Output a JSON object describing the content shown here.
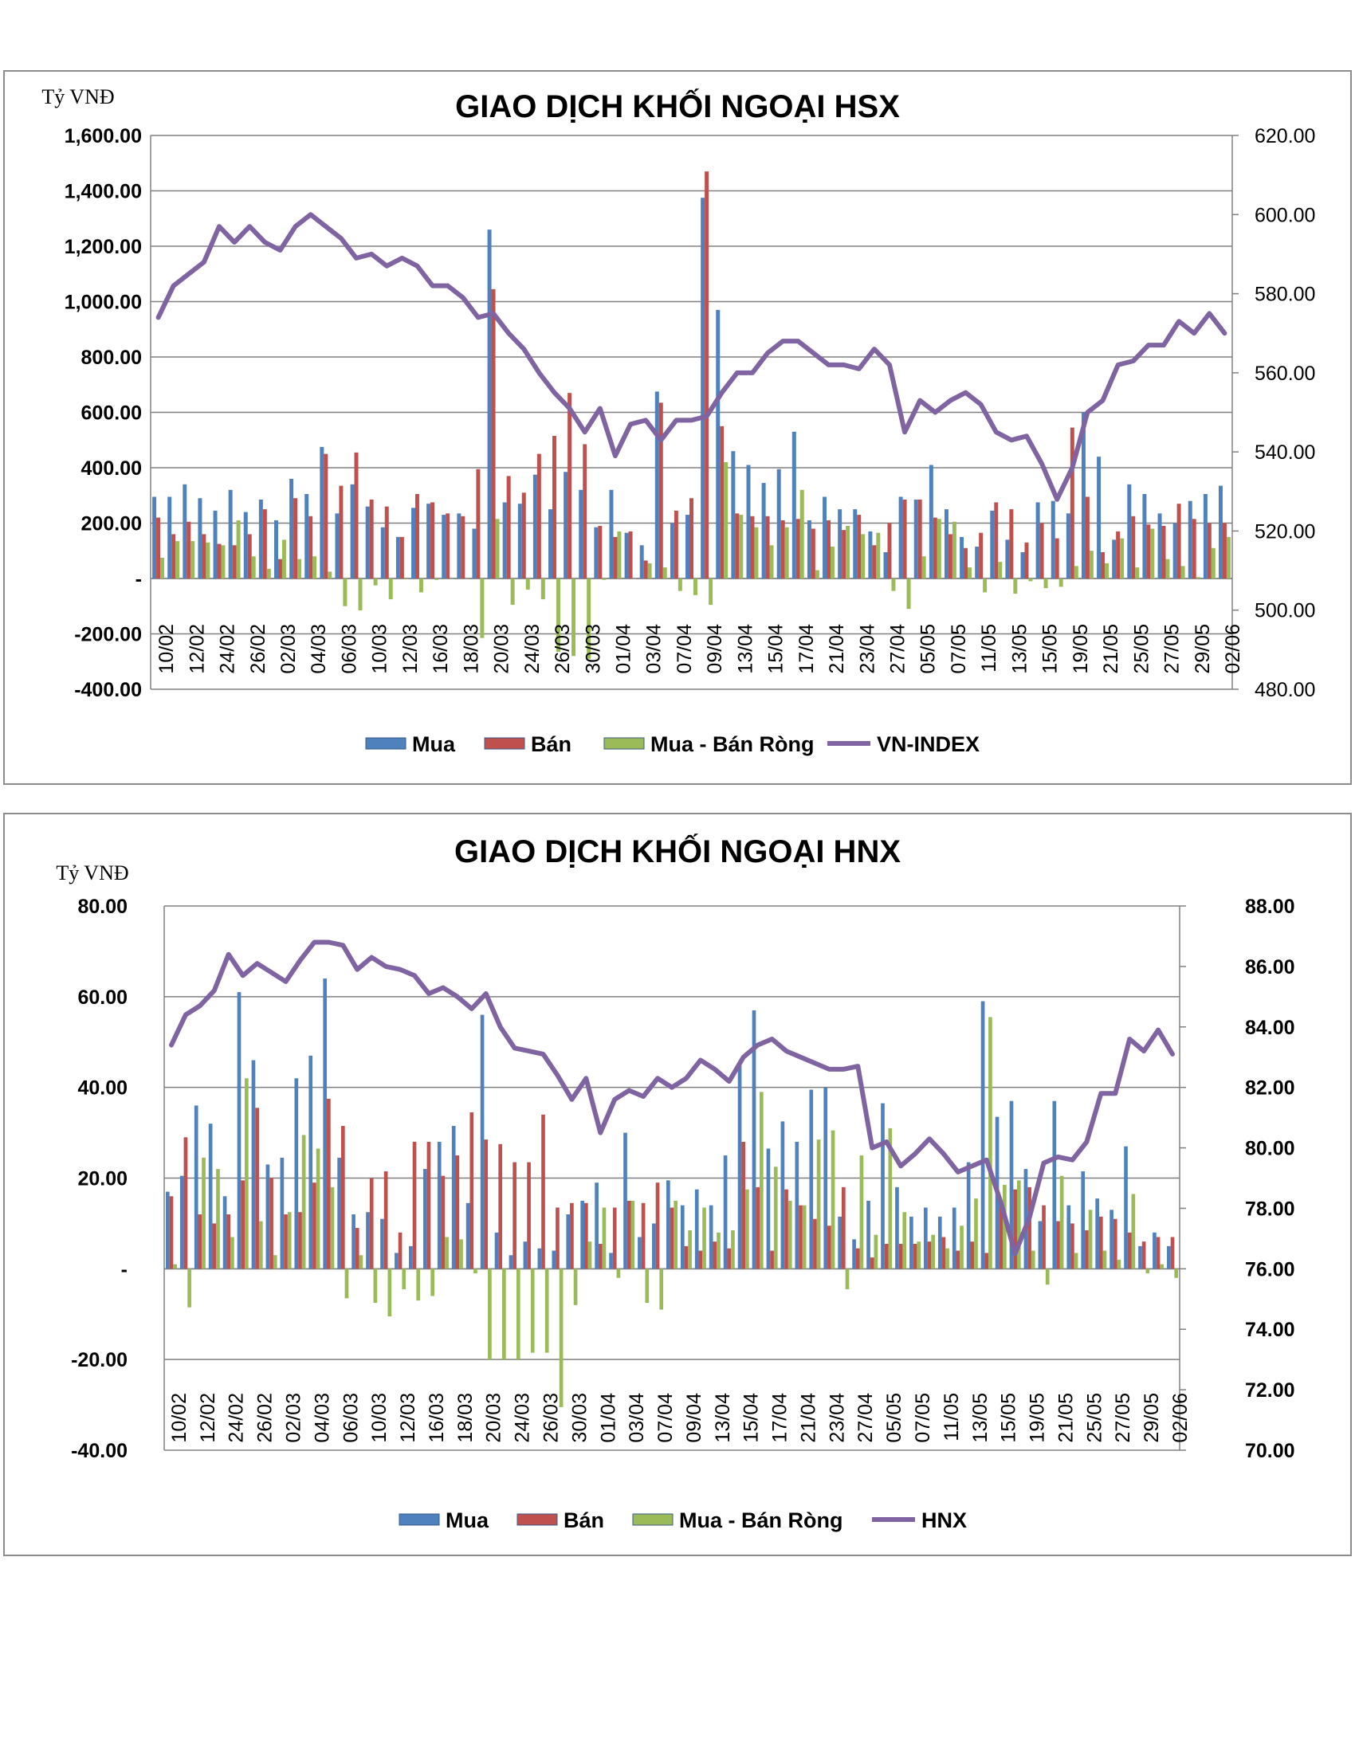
{
  "colors": {
    "buy": "#4f81bd",
    "sell": "#c0504d",
    "net": "#9bbb59",
    "index": "#8064a2",
    "grid": "#808080",
    "text": "#000000"
  },
  "chart_data": [
    {
      "type": "bar",
      "title": "GIAO DỊCH KHỐI NGOẠI HSX",
      "ylabel": "Tỷ VNĐ",
      "ylim": [
        -400,
        1600
      ],
      "y_ticks": [
        "-400.00",
        "-200.00",
        "-",
        "200.00",
        "400.00",
        "600.00",
        "800.00",
        "1,000.00",
        "1,200.00",
        "1,400.00",
        "1,600.00"
      ],
      "y2lim": [
        480,
        620
      ],
      "y2_ticks": [
        "480.00",
        "500.00",
        "520.00",
        "540.00",
        "560.00",
        "580.00",
        "600.00",
        "620.00"
      ],
      "grid": true,
      "legend_position": "bottom",
      "x_labels": [
        "10/02",
        "12/02",
        "24/02",
        "26/02",
        "02/03",
        "04/03",
        "06/03",
        "10/03",
        "12/03",
        "16/03",
        "18/03",
        "20/03",
        "24/03",
        "26/03",
        "30/03",
        "01/04",
        "03/04",
        "07/04",
        "09/04",
        "13/04",
        "15/04",
        "17/04",
        "21/04",
        "23/04",
        "27/04",
        "05/05",
        "07/05",
        "11/05",
        "13/05",
        "15/05",
        "19/05",
        "21/05",
        "25/05",
        "27/05",
        "29/05",
        "02/06"
      ],
      "series": [
        {
          "name": "Mua",
          "kind": "bar",
          "values": [
            295,
            295,
            340,
            290,
            245,
            320,
            240,
            285,
            210,
            360,
            305,
            475,
            235,
            340,
            260,
            185,
            150,
            255,
            270,
            230,
            235,
            180,
            1260,
            275,
            270,
            375,
            250,
            385,
            320,
            185,
            320,
            165,
            120,
            675,
            200,
            230,
            1375,
            970,
            460,
            410,
            345,
            395,
            530,
            210,
            295,
            250,
            250,
            170,
            95,
            295,
            285,
            410,
            250,
            150,
            115,
            245,
            140,
            95,
            275,
            280,
            235,
            600,
            440,
            140,
            340,
            305,
            235,
            200,
            280,
            305,
            335
          ]
        },
        {
          "name": "Bán",
          "kind": "bar",
          "values": [
            220,
            160,
            205,
            160,
            125,
            120,
            160,
            250,
            70,
            290,
            225,
            450,
            335,
            455,
            285,
            260,
            150,
            305,
            275,
            235,
            225,
            395,
            1045,
            370,
            310,
            450,
            515,
            670,
            485,
            190,
            150,
            170,
            65,
            635,
            245,
            290,
            1470,
            550,
            235,
            225,
            225,
            210,
            215,
            180,
            210,
            175,
            230,
            120,
            200,
            285,
            285,
            220,
            160,
            110,
            165,
            275,
            250,
            130,
            200,
            145,
            545,
            295,
            95,
            170,
            225,
            195,
            190,
            270,
            215,
            200,
            200
          ]
        },
        {
          "name": "Mua - Bán Ròng",
          "kind": "bar",
          "values": [
            75,
            135,
            135,
            130,
            120,
            210,
            80,
            35,
            140,
            70,
            80,
            25,
            -100,
            -115,
            -25,
            -75,
            0,
            -50,
            -5,
            0,
            0,
            -215,
            215,
            -95,
            -40,
            -75,
            -265,
            -280,
            -290,
            -5,
            170,
            0,
            55,
            40,
            -45,
            -60,
            -95,
            420,
            230,
            185,
            120,
            185,
            320,
            30,
            115,
            190,
            160,
            165,
            -45,
            -110,
            80,
            215,
            205,
            40,
            -50,
            60,
            -55,
            -10,
            -35,
            -30,
            45,
            100,
            55,
            145,
            40,
            180,
            70,
            45,
            5,
            110,
            150
          ]
        },
        {
          "name": "VN-INDEX",
          "kind": "line",
          "axis": "y2",
          "values": [
            574,
            582,
            585,
            588,
            597,
            593,
            597,
            593,
            591,
            597,
            600,
            597,
            594,
            589,
            590,
            587,
            589,
            587,
            582,
            582,
            579,
            574,
            575,
            570,
            566,
            560,
            555,
            551,
            545,
            551,
            539,
            547,
            548,
            543,
            548,
            548,
            549,
            555,
            560,
            560,
            565,
            568,
            568,
            565,
            562,
            562,
            561,
            566,
            562,
            545,
            553,
            550,
            553,
            555,
            552,
            545,
            543,
            544,
            537,
            528,
            536,
            550,
            553,
            562,
            563,
            567,
            567,
            573,
            570,
            575,
            570
          ]
        }
      ]
    },
    {
      "type": "bar",
      "title": "GIAO DỊCH KHỐI NGOẠI HNX",
      "ylabel": "Tỷ VNĐ",
      "ylim": [
        -40,
        80
      ],
      "y_ticks": [
        "-40.00",
        "-20.00",
        "-",
        "20.00",
        "40.00",
        "60.00",
        "80.00"
      ],
      "y2lim": [
        70,
        88
      ],
      "y2_ticks": [
        "70.00",
        "72.00",
        "74.00",
        "76.00",
        "78.00",
        "80.00",
        "82.00",
        "84.00",
        "86.00",
        "88.00"
      ],
      "grid": true,
      "legend_position": "bottom",
      "x_labels": [
        "10/02",
        "12/02",
        "24/02",
        "26/02",
        "02/03",
        "04/03",
        "06/03",
        "10/03",
        "12/03",
        "16/03",
        "18/03",
        "20/03",
        "24/03",
        "26/03",
        "30/03",
        "01/04",
        "03/04",
        "07/04",
        "09/04",
        "13/04",
        "15/04",
        "17/04",
        "21/04",
        "23/04",
        "27/04",
        "05/05",
        "07/05",
        "11/05",
        "13/05",
        "15/05",
        "19/05",
        "21/05",
        "25/05",
        "27/05",
        "29/05",
        "02/06"
      ],
      "series": [
        {
          "name": "Mua",
          "kind": "bar",
          "values": [
            17,
            20.5,
            36,
            32,
            16,
            61,
            46,
            23,
            24.5,
            42,
            47,
            64,
            24.5,
            12,
            12.5,
            11,
            3.5,
            5,
            22,
            28,
            31.5,
            14.5,
            56,
            8,
            3,
            6,
            4.5,
            4,
            12,
            15,
            19,
            3.5,
            30,
            7,
            10,
            19.5,
            14,
            17.5,
            14,
            25,
            45.5,
            57,
            26.5,
            32.5,
            28,
            39.5,
            40,
            11.5,
            6.5,
            15,
            36.5,
            18,
            11.5,
            13.5,
            11.5,
            13.5,
            23.5,
            59,
            33.5,
            37,
            22,
            10.5,
            37,
            14,
            21.5,
            15.5,
            13,
            27,
            5,
            8,
            5
          ]
        },
        {
          "name": "Bán",
          "kind": "bar",
          "values": [
            16,
            29,
            12,
            10,
            12,
            19.5,
            35.5,
            20,
            12,
            12.5,
            19,
            37.5,
            31.5,
            9,
            20,
            21.5,
            8,
            28,
            28,
            20.5,
            25,
            34.5,
            28.5,
            27.5,
            23.5,
            23.5,
            34,
            13.5,
            14.5,
            14.5,
            5.5,
            13.5,
            15,
            14.5,
            19,
            13.5,
            5,
            4,
            6,
            4.5,
            28,
            18,
            4,
            17.5,
            14,
            11,
            9.5,
            18,
            4.5,
            2.5,
            5.5,
            5.5,
            5.5,
            6,
            7,
            4,
            6,
            3.5,
            15,
            17.5,
            18,
            14,
            10.5,
            10,
            8.5,
            11.5,
            11,
            8,
            6,
            7,
            7
          ]
        },
        {
          "name": "Mua - Bán Ròng",
          "kind": "bar",
          "values": [
            1,
            -8.5,
            24.5,
            22,
            7,
            42,
            10.5,
            3,
            12.5,
            29.5,
            26.5,
            18,
            -6.5,
            3,
            -7.5,
            -10.5,
            -4.5,
            -7,
            -6,
            7,
            6.5,
            -1,
            -20,
            -20,
            -20,
            -18.5,
            -18.5,
            -30.5,
            -8,
            6,
            13.5,
            -2,
            15,
            -7.5,
            -9,
            15,
            8.5,
            13.5,
            8,
            8.5,
            17.5,
            39,
            22.5,
            15,
            14,
            28.5,
            30.5,
            -4.5,
            25,
            7.5,
            31,
            12.5,
            6,
            7.5,
            4.5,
            9.5,
            15.5,
            55.5,
            18.5,
            19.5,
            4,
            -3.5,
            20.5,
            3.5,
            13,
            4,
            2,
            16.5,
            -1,
            1,
            -2
          ]
        },
        {
          "name": "HNX",
          "kind": "line",
          "axis": "y2",
          "values": [
            83.4,
            84.4,
            84.7,
            85.2,
            86.4,
            85.7,
            86.1,
            85.8,
            85.5,
            86.2,
            86.8,
            86.8,
            86.7,
            85.9,
            86.3,
            86,
            85.9,
            85.7,
            85.1,
            85.3,
            85,
            84.6,
            85.1,
            84,
            83.3,
            83.2,
            83.1,
            82.4,
            81.6,
            82.3,
            80.5,
            81.6,
            81.9,
            81.7,
            82.3,
            82,
            82.3,
            82.9,
            82.6,
            82.2,
            83,
            83.4,
            83.6,
            83.2,
            83,
            82.8,
            82.6,
            82.6,
            82.7,
            80,
            80.2,
            79.4,
            79.8,
            80.3,
            79.8,
            79.2,
            79.4,
            79.6,
            78.2,
            76.5,
            77.7,
            79.5,
            79.7,
            79.6,
            80.2,
            81.8,
            81.8,
            83.6,
            83.2,
            83.9,
            83.1
          ]
        }
      ]
    }
  ]
}
